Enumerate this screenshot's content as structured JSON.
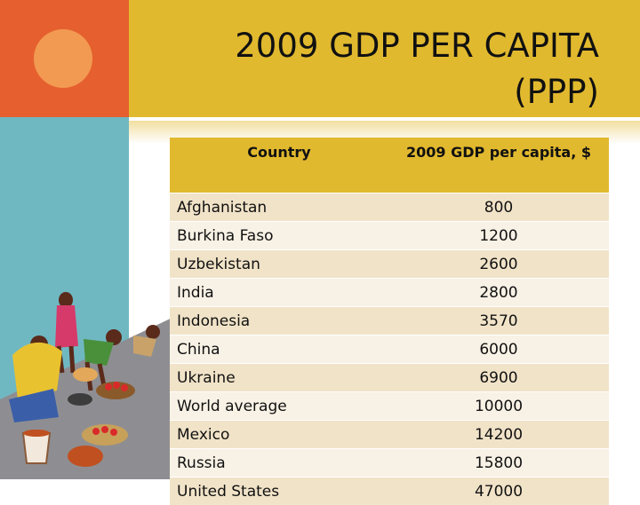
{
  "slide": {
    "title_line1": "2009 GDP PER CAPITA",
    "title_line2": "(PPP)"
  },
  "table": {
    "header_country": "Country",
    "header_gdp": "2009 GDP per capita, $",
    "rows": [
      {
        "country": "Afghanistan",
        "value": "800"
      },
      {
        "country": "Burkina Faso",
        "value": "1200"
      },
      {
        "country": "Uzbekistan",
        "value": "2600"
      },
      {
        "country": "India",
        "value": "2800"
      },
      {
        "country": "Indonesia",
        "value": "3570"
      },
      {
        "country": "China",
        "value": "6000"
      },
      {
        "country": "Ukraine",
        "value": "6900"
      },
      {
        "country": "World average",
        "value": "10000"
      },
      {
        "country": "Mexico",
        "value": "14200"
      },
      {
        "country": "Russia",
        "value": "15800"
      },
      {
        "country": "United States",
        "value": "47000"
      }
    ]
  },
  "colors": {
    "orange": "#e6602f",
    "gold": "#e1b92e",
    "teal": "#6fb8c2",
    "row_odd": "#f1e3c8",
    "row_even": "#f8f1e5"
  },
  "illustration": {
    "icon": "market-women-clipart"
  }
}
